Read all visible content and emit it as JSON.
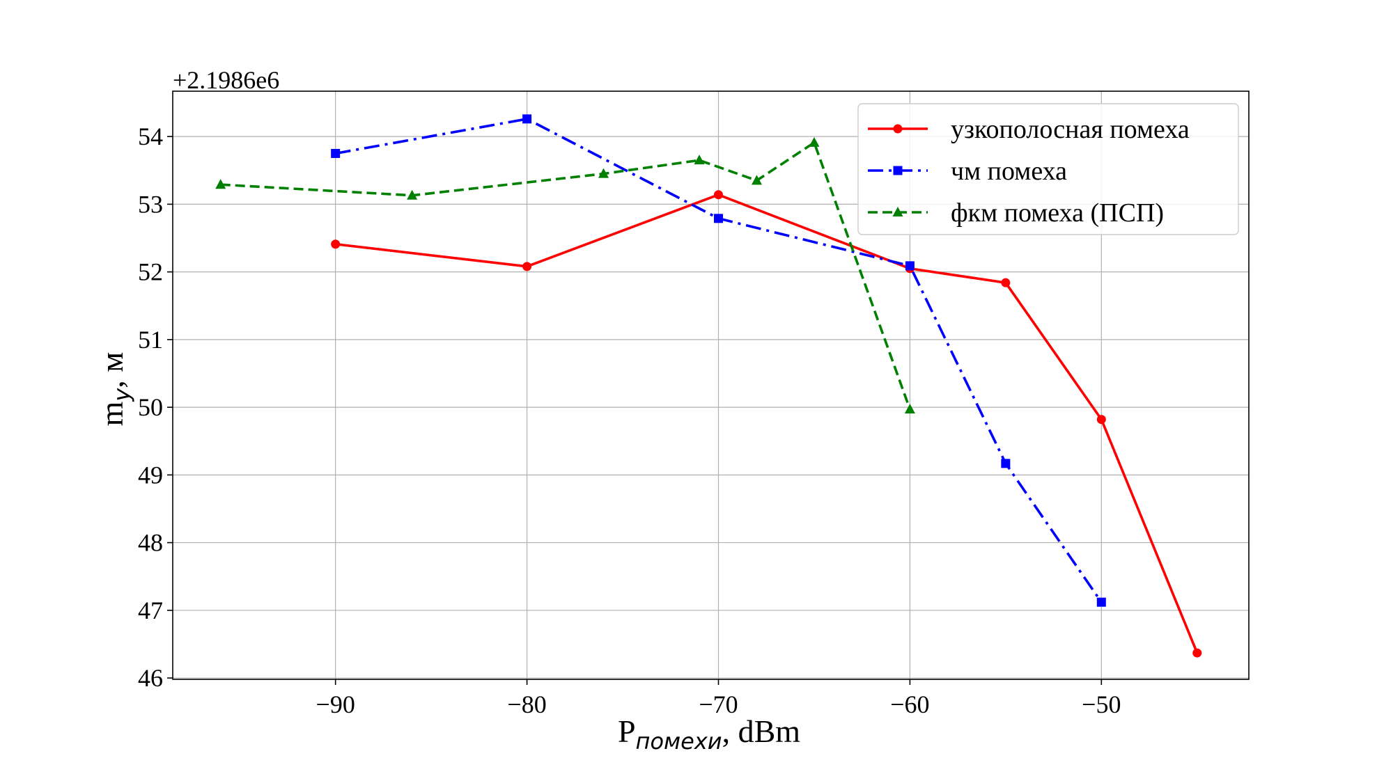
{
  "chart_data": {
    "type": "line",
    "title": "",
    "offset_text": "+2.1986e6",
    "xlabel": {
      "main": "P",
      "sub": "помехи",
      "rest": ", dBm"
    },
    "ylabel": {
      "main": "m",
      "sub": "y",
      "rest": ", м"
    },
    "xlim": [
      -98.5,
      -42.3
    ],
    "ylim": [
      45.98,
      54.67
    ],
    "xticks": [
      -90,
      -80,
      -70,
      -60,
      -50
    ],
    "xtick_labels": [
      "−90",
      "−80",
      "−70",
      "−60",
      "−50"
    ],
    "yticks": [
      46,
      47,
      48,
      49,
      50,
      51,
      52,
      53,
      54
    ],
    "ytick_labels": [
      "46",
      "47",
      "48",
      "49",
      "50",
      "51",
      "52",
      "53",
      "54"
    ],
    "grid": true,
    "legend_position": "top-right",
    "series": [
      {
        "name": "узкополосная помеха",
        "color": "#ff0000",
        "line_style": "solid",
        "marker": "circle",
        "x": [
          -90,
          -80,
          -70,
          -60,
          -55,
          -50,
          -45
        ],
        "y": [
          52.41,
          52.08,
          53.14,
          52.05,
          51.84,
          49.82,
          46.37
        ]
      },
      {
        "name": "чм помеха",
        "color": "#0000ff",
        "line_style": "dashdot",
        "marker": "square",
        "x": [
          -90,
          -80,
          -70,
          -60,
          -55,
          -50
        ],
        "y": [
          53.75,
          54.26,
          52.79,
          52.09,
          49.17,
          47.12
        ]
      },
      {
        "name": "фкм помеха (ПСП)",
        "color": "#008000",
        "line_style": "dashed",
        "marker": "triangle",
        "x": [
          -96,
          -86,
          -76,
          -71,
          -68,
          -65,
          -60
        ],
        "y": [
          53.29,
          53.13,
          53.45,
          53.65,
          53.35,
          53.91,
          49.97
        ]
      }
    ]
  }
}
